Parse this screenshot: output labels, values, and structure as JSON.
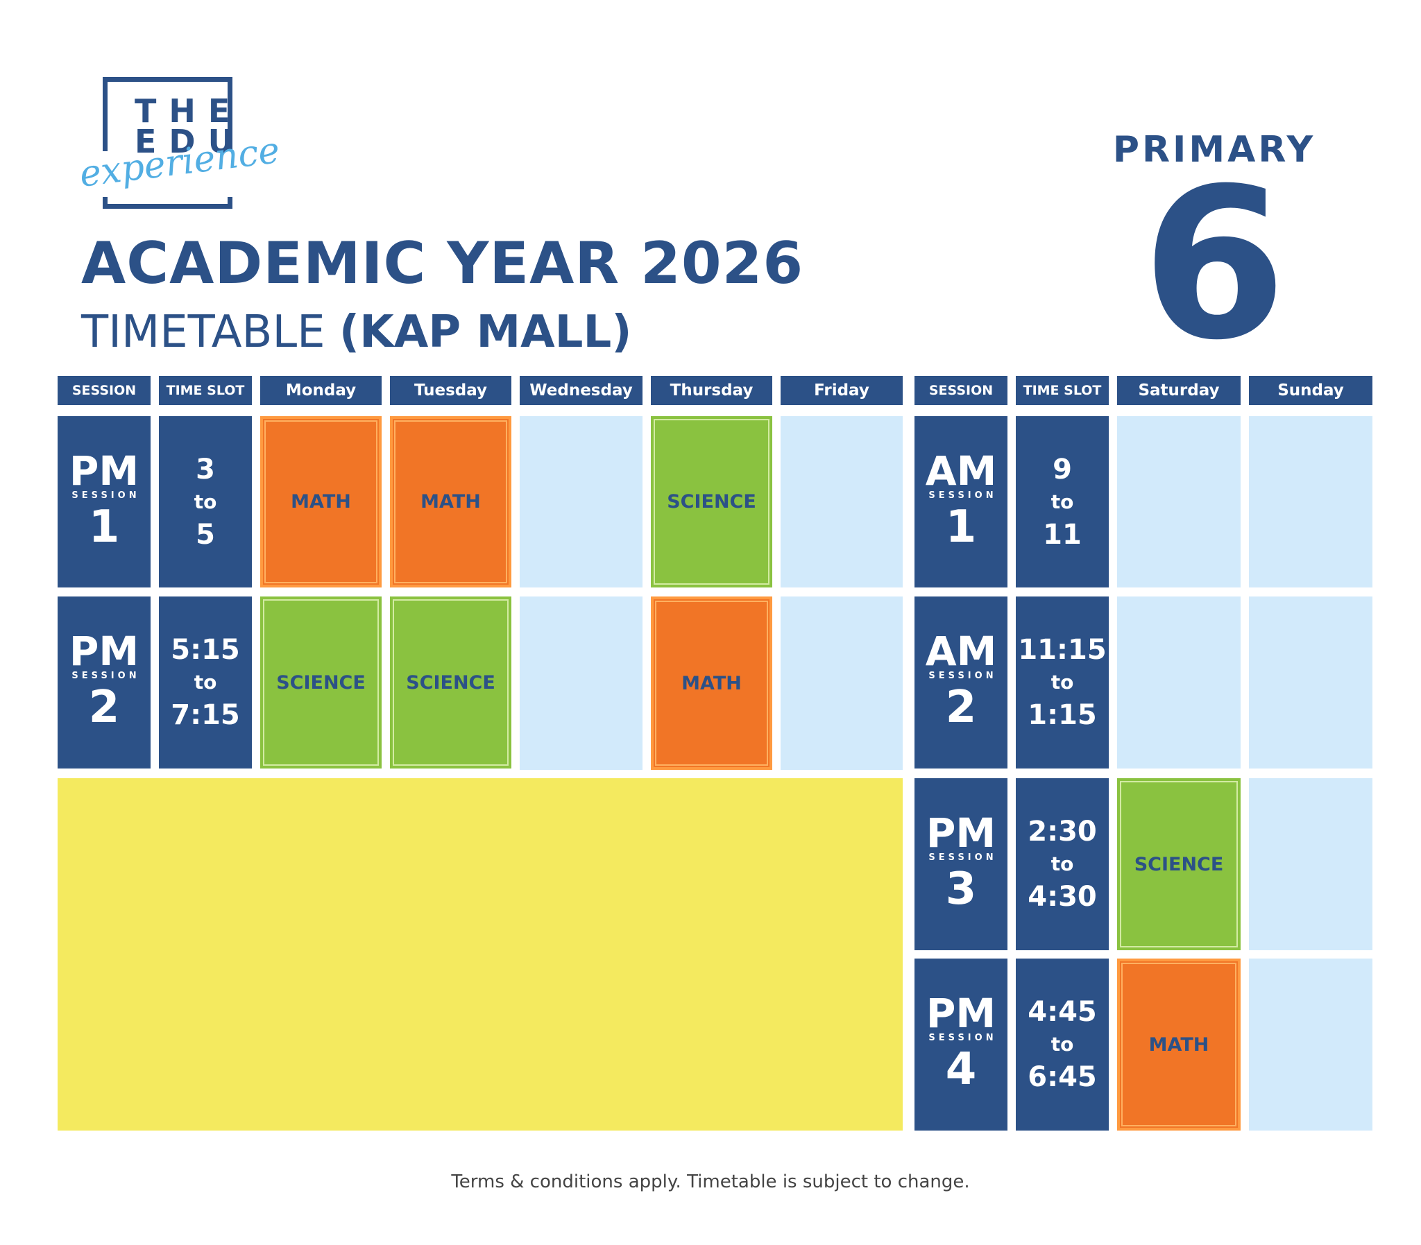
{
  "logo": {
    "line1": "THE",
    "line2": "EDU",
    "script": "experience"
  },
  "title": "ACADEMIC YEAR 2026",
  "subtitle_prefix": "TIMETABLE ",
  "subtitle_bold": "(KAP MALL)",
  "level_label": "PRIMARY",
  "level_number": "6",
  "weekday_headers": {
    "session": "SESSION",
    "time_slot": "TIME SLOT",
    "days": [
      "Monday",
      "Tuesday",
      "Wednesday",
      "Thursday",
      "Friday"
    ]
  },
  "weekend_headers": {
    "session": "SESSION",
    "time_slot": "TIME SLOT",
    "days": [
      "Saturday",
      "Sunday"
    ]
  },
  "session_word": "SESSION",
  "to_word": "to",
  "weekday_sessions": [
    {
      "type": "PM",
      "number": "1",
      "start": "3",
      "end": "5",
      "subjects": [
        "MATH",
        "MATH",
        "",
        "SCIENCE",
        ""
      ]
    },
    {
      "type": "PM",
      "number": "2",
      "start": "5:15",
      "end": "7:15",
      "subjects": [
        "SCIENCE",
        "SCIENCE",
        "",
        "MATH",
        ""
      ]
    }
  ],
  "weekend_sessions": [
    {
      "type": "AM",
      "number": "1",
      "start": "9",
      "end": "11",
      "subjects": [
        "",
        ""
      ]
    },
    {
      "type": "AM",
      "number": "2",
      "start": "11:15",
      "end": "1:15",
      "subjects": [
        "",
        ""
      ]
    },
    {
      "type": "PM",
      "number": "3",
      "start": "2:30",
      "end": "4:30",
      "subjects": [
        "SCIENCE",
        ""
      ]
    },
    {
      "type": "PM",
      "number": "4",
      "start": "4:45",
      "end": "6:45",
      "subjects": [
        "MATH",
        ""
      ]
    }
  ],
  "colors": {
    "navy": "#2c5187",
    "math": "#f17526",
    "science": "#8ac240",
    "empty": "#d2eafb",
    "yellow": "#f4ea5f",
    "script_blue": "#52aee3"
  },
  "footer": "Terms & conditions apply. Timetable is subject to change."
}
